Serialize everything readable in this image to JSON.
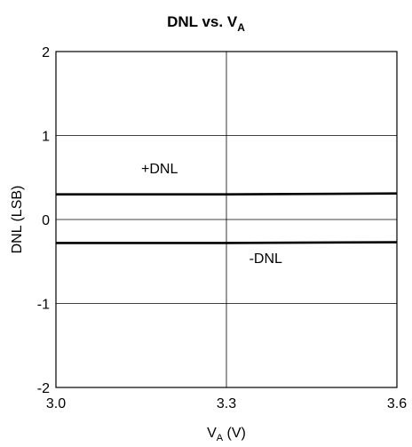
{
  "chart_data": {
    "type": "line",
    "title": {
      "text": "DNL vs. V",
      "subscript": "A"
    },
    "xlabel": {
      "text": "V",
      "subscript": "A",
      "suffix": " (V)"
    },
    "ylabel": "DNL (LSB)",
    "xlim": [
      3.0,
      3.6
    ],
    "ylim": [
      -2,
      2
    ],
    "xticks": [
      3.0,
      3.3,
      3.6
    ],
    "xtick_labels": [
      "3.0",
      "3.3",
      "3.6"
    ],
    "yticks": [
      -2,
      -1,
      0,
      1,
      2
    ],
    "ytick_labels": [
      "-2",
      "-1",
      "0",
      "1",
      "2"
    ],
    "grid": true,
    "series": [
      {
        "name": "+DNL",
        "x": [
          3.0,
          3.3,
          3.6
        ],
        "y": [
          0.3,
          0.3,
          0.31
        ]
      },
      {
        "name": "-DNL",
        "x": [
          3.0,
          3.3,
          3.6
        ],
        "y": [
          -0.28,
          -0.28,
          -0.27
        ]
      }
    ],
    "annotations": [
      {
        "text": "+DNL",
        "x": 3.15,
        "y": 0.55
      },
      {
        "text": "-DNL",
        "x": 3.34,
        "y": -0.52
      }
    ]
  }
}
